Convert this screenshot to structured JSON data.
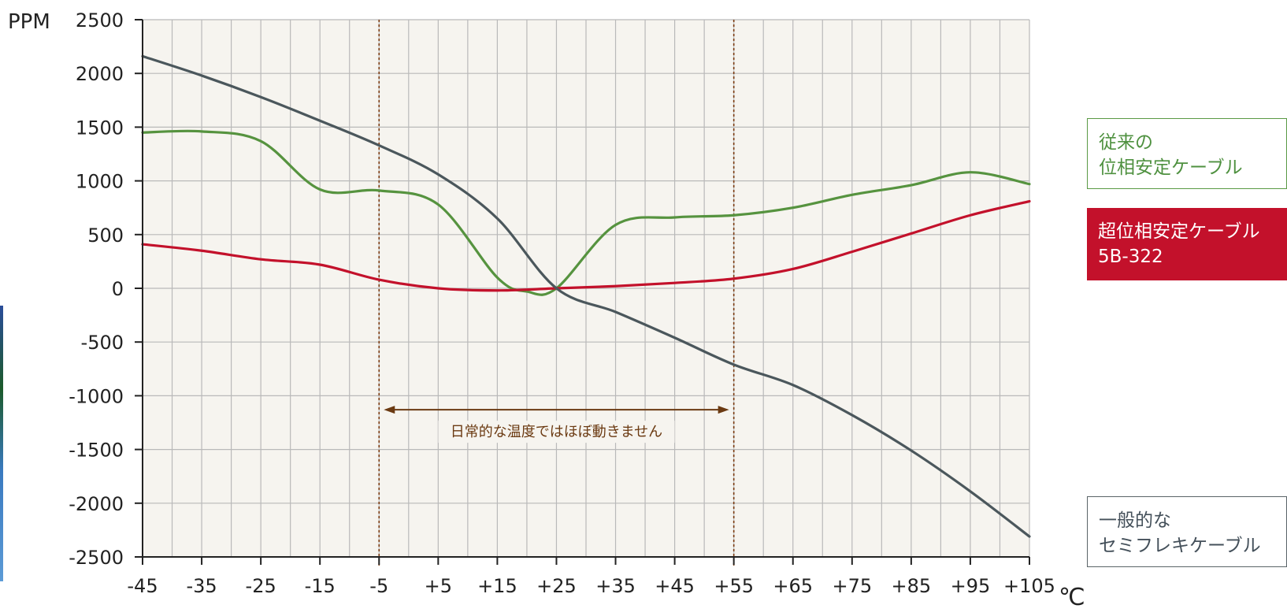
{
  "chart_data": {
    "type": "line",
    "ylabel": "PPM",
    "xlabel": "℃",
    "ylim": [
      -2500,
      2500
    ],
    "yticks": [
      2500,
      2000,
      1500,
      1000,
      500,
      0,
      -500,
      -1000,
      -1500,
      -2000,
      -2500
    ],
    "ytick_labels": [
      "2500",
      "2000",
      "1500",
      "1000",
      "500",
      "0",
      "-500",
      "-1000",
      "-1500",
      "-2000",
      "-2500"
    ],
    "xlim": [
      -45,
      105
    ],
    "x_tick_labels": [
      "-45",
      "-35",
      "-25",
      "-15",
      "-5",
      "+5",
      "+15",
      "+25",
      "+35",
      "+45",
      "+55",
      "+65",
      "+75",
      "+85",
      "+95",
      "+105"
    ],
    "grid": true,
    "series": [
      {
        "name": "一般的な\nセミフレキケーブル",
        "color": "#4b575c",
        "x": [
          -45,
          -35,
          -25,
          -15,
          -5,
          5,
          15,
          25,
          35,
          45,
          55,
          65,
          75,
          85,
          95,
          105
        ],
        "y": [
          2160,
          1980,
          1780,
          1560,
          1330,
          1060,
          650,
          0,
          -220,
          -460,
          -710,
          -900,
          -1180,
          -1510,
          -1890,
          -2310
        ]
      },
      {
        "name": "従来の\n位相安定ケーブル",
        "color": "#56933f",
        "x": [
          -45,
          -35,
          -25,
          -15,
          -5,
          5,
          15,
          20,
          25,
          35,
          45,
          55,
          65,
          75,
          85,
          95,
          105
        ],
        "y": [
          1450,
          1460,
          1370,
          920,
          910,
          780,
          100,
          -30,
          0,
          590,
          660,
          680,
          750,
          870,
          960,
          1080,
          970
        ]
      },
      {
        "name": "超位相安定ケーブル\n5B-322",
        "color": "#c3112b",
        "x": [
          -45,
          -35,
          -25,
          -15,
          -5,
          5,
          15,
          25,
          35,
          45,
          55,
          65,
          75,
          85,
          95,
          105
        ],
        "y": [
          410,
          350,
          270,
          220,
          80,
          0,
          -20,
          0,
          20,
          50,
          90,
          180,
          340,
          510,
          680,
          810
        ]
      }
    ],
    "reference_lines": [
      {
        "x": -5,
        "color": "#7a3a10"
      },
      {
        "x": 55,
        "color": "#7a3a10"
      }
    ],
    "annotation": {
      "text": "日常的な温度ではほぼ動きません",
      "from_x": -5,
      "to_x": 55,
      "y": -1130,
      "color": "#6b3a12"
    }
  },
  "colors": {
    "plot_background": "#f6f4ef",
    "grid": "#b9b9b9",
    "axis": "#222222"
  }
}
